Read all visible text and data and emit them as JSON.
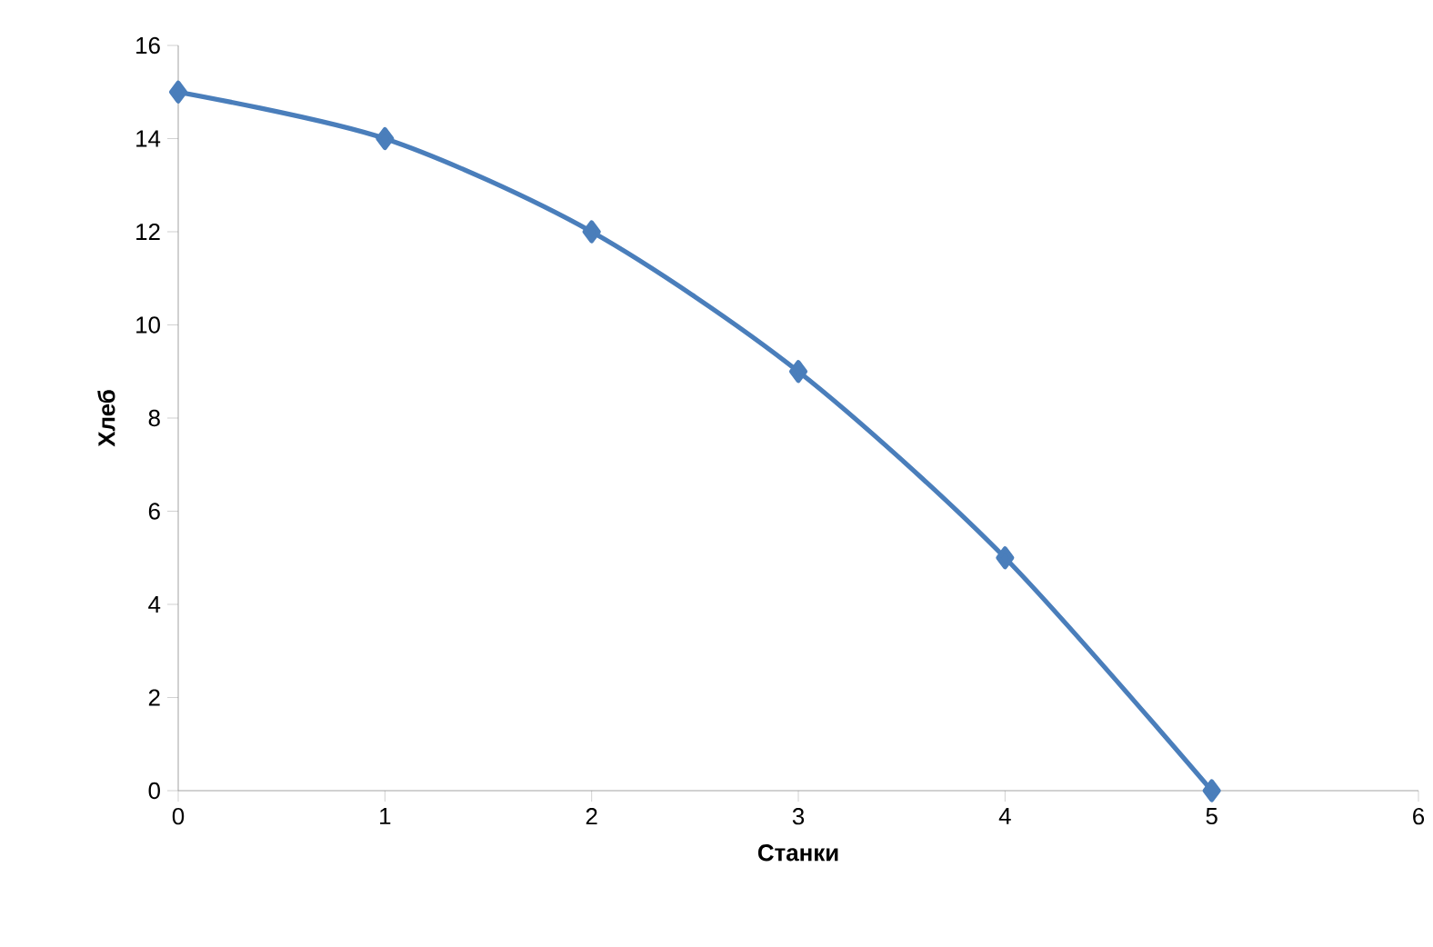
{
  "chart_data": {
    "type": "line",
    "xlabel": "Станки",
    "ylabel": "Хлеб",
    "x": [
      0,
      1,
      2,
      3,
      4,
      5
    ],
    "series": [
      {
        "color": "#4a7ebb",
        "values": [
          15,
          14,
          12,
          9,
          5,
          0
        ]
      }
    ],
    "xlim": [
      0,
      6
    ],
    "xticks": [
      0,
      1,
      2,
      3,
      4,
      5,
      6
    ],
    "ylim": [
      0,
      16
    ],
    "yticks": [
      0,
      2,
      4,
      6,
      8,
      10,
      12,
      14,
      16
    ],
    "marker": "diamond",
    "line_style": "solid"
  }
}
